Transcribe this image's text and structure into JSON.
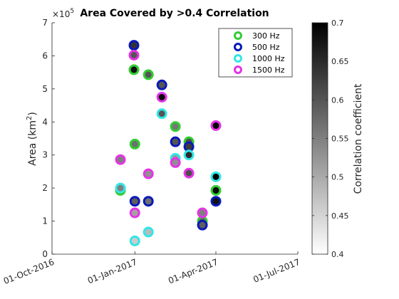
{
  "chart_data": {
    "type": "scatter",
    "title": "Area Covered by >0.4 Correlation",
    "ylabel_main": "Area (km",
    "ylabel_sup": "2",
    "ylabel_end": ")",
    "y_exponent_base": "×10",
    "y_exponent_power": "5",
    "ylim": [
      0,
      7
    ],
    "y_ticks": [
      0,
      1,
      2,
      3,
      4,
      5,
      6,
      7
    ],
    "y_tick_labels": [
      "0",
      "1",
      "2",
      "3",
      "4",
      "5",
      "6",
      "7"
    ],
    "x_ticks": [
      "2016-10-01",
      "2017-01-01",
      "2017-04-01",
      "2017-07-01"
    ],
    "x_tick_labels": [
      "01-Oct-2016",
      "01-Jan-2017",
      "01-Apr-2017",
      "01-Jul-2017"
    ],
    "colorbar": {
      "label": "Correlation coefficient",
      "range": [
        0.4,
        0.7
      ],
      "ticks": [
        0.4,
        0.45,
        0.5,
        0.55,
        0.6,
        0.65,
        0.7
      ],
      "tick_labels": [
        "0.4",
        "0.45",
        "0.5",
        "0.55",
        "0.6",
        "0.65",
        "0.7"
      ]
    },
    "legend_position": "top-right",
    "series": [
      {
        "name": "300 Hz",
        "edge_color": "#33cc33",
        "points": [
          {
            "x": "2016-12-16",
            "y": 1.93,
            "c": 0.53
          },
          {
            "x": "2016-12-31",
            "y": 5.58,
            "c": 0.68
          },
          {
            "x": "2017-01-01",
            "y": 3.33,
            "c": 0.57
          },
          {
            "x": "2017-01-16",
            "y": 5.43,
            "c": 0.6
          },
          {
            "x": "2017-02-15",
            "y": 3.86,
            "c": 0.56
          },
          {
            "x": "2017-03-02",
            "y": 3.4,
            "c": 0.61
          },
          {
            "x": "2017-03-17",
            "y": 1.0,
            "c": 0.58
          },
          {
            "x": "2017-04-01",
            "y": 1.93,
            "c": 0.69
          }
        ]
      },
      {
        "name": "500 Hz",
        "edge_color": "#0a1ab8",
        "points": [
          {
            "x": "2016-12-31",
            "y": 6.32,
            "c": 0.64
          },
          {
            "x": "2017-01-01",
            "y": 1.6,
            "c": 0.59
          },
          {
            "x": "2017-01-16",
            "y": 1.6,
            "c": 0.57
          },
          {
            "x": "2017-01-31",
            "y": 5.12,
            "c": 0.6
          },
          {
            "x": "2017-02-15",
            "y": 3.4,
            "c": 0.6
          },
          {
            "x": "2017-03-02",
            "y": 3.25,
            "c": 0.63
          },
          {
            "x": "2017-03-17",
            "y": 0.88,
            "c": 0.59
          },
          {
            "x": "2017-04-01",
            "y": 1.6,
            "c": 0.68
          }
        ]
      },
      {
        "name": "1000 Hz",
        "edge_color": "#33e6e6",
        "points": [
          {
            "x": "2016-12-16",
            "y": 2.0,
            "c": 0.55
          },
          {
            "x": "2017-01-01",
            "y": 0.4,
            "c": 0.46
          },
          {
            "x": "2017-01-16",
            "y": 0.67,
            "c": 0.48
          },
          {
            "x": "2017-01-31",
            "y": 4.25,
            "c": 0.6
          },
          {
            "x": "2017-02-15",
            "y": 2.9,
            "c": 0.52
          },
          {
            "x": "2017-03-02",
            "y": 3.0,
            "c": 0.65
          },
          {
            "x": "2017-04-01",
            "y": 2.34,
            "c": 0.7
          }
        ]
      },
      {
        "name": "1500 Hz",
        "edge_color": "#e633e6",
        "points": [
          {
            "x": "2016-12-16",
            "y": 2.86,
            "c": 0.55
          },
          {
            "x": "2016-12-31",
            "y": 6.02,
            "c": 0.6
          },
          {
            "x": "2017-01-01",
            "y": 1.25,
            "c": 0.51
          },
          {
            "x": "2017-01-16",
            "y": 2.43,
            "c": 0.53
          },
          {
            "x": "2017-01-31",
            "y": 4.75,
            "c": 0.69
          },
          {
            "x": "2017-02-15",
            "y": 2.77,
            "c": 0.53
          },
          {
            "x": "2017-03-02",
            "y": 2.45,
            "c": 0.61
          },
          {
            "x": "2017-03-17",
            "y": 1.25,
            "c": 0.55
          },
          {
            "x": "2017-04-01",
            "y": 3.89,
            "c": 0.7
          }
        ]
      }
    ]
  }
}
